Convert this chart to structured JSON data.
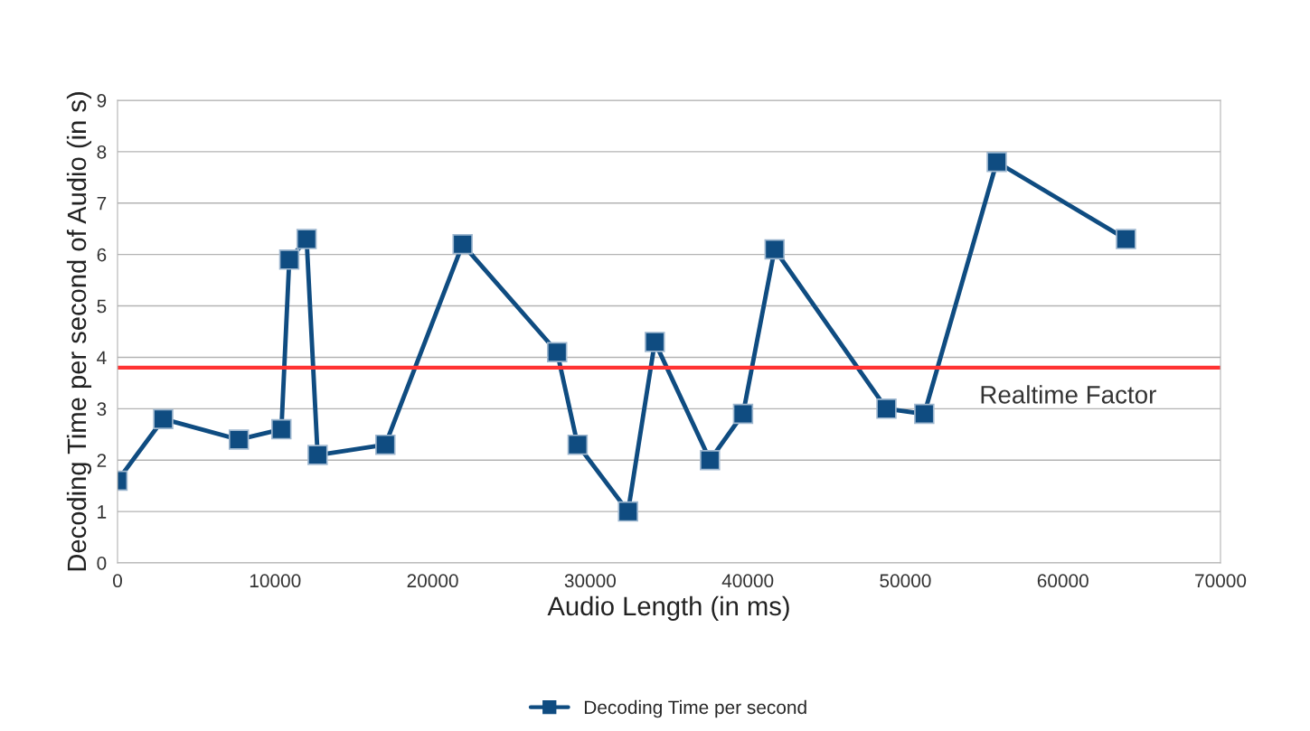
{
  "chart_data": {
    "type": "line",
    "xlabel": "Audio Length (in ms)",
    "ylabel": "Decoding Time per second of Audio (in s)",
    "x": [
      0,
      2900,
      7700,
      10400,
      10900,
      12000,
      12700,
      17000,
      21900,
      27900,
      29200,
      32400,
      34100,
      37600,
      39700,
      41700,
      48800,
      51200,
      55800,
      64000
    ],
    "series": [
      {
        "name": "Decoding Time per second",
        "color": "#0f4c81",
        "values": [
          1.6,
          2.8,
          2.4,
          2.6,
          5.9,
          6.3,
          2.1,
          2.3,
          6.2,
          4.1,
          2.3,
          1.0,
          4.3,
          2.0,
          2.9,
          6.1,
          3.0,
          2.9,
          7.8,
          6.3
        ]
      }
    ],
    "xlim": [
      0,
      70000
    ],
    "xticks": [
      0,
      10000,
      20000,
      30000,
      40000,
      50000,
      60000,
      70000
    ],
    "ylim": [
      0,
      9
    ],
    "yticks": [
      0,
      1,
      2,
      3,
      4,
      5,
      6,
      7,
      8,
      9
    ],
    "ref_lines": [
      {
        "axis": "y",
        "value": 3.8,
        "label": "Realtime Factor",
        "color": "#ff3333"
      }
    ],
    "grid": "y",
    "legend": "bottom",
    "marker": "square",
    "line_style": "solid"
  }
}
